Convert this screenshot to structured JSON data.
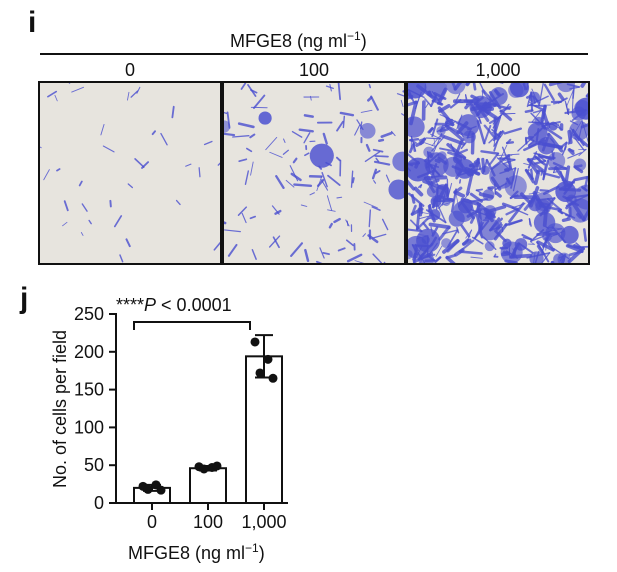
{
  "panel_i": {
    "letter": "i",
    "header_label": "MFGE8 (ng ml",
    "header_sup": "−1",
    "header_close": ")",
    "columns": [
      "0",
      "100",
      "1,000"
    ],
    "image_tint": "#4a4fd0",
    "image_background": "#e7e4de"
  },
  "panel_j": {
    "letter": "j",
    "significance": {
      "stars": "****",
      "p_letter": "P",
      "text": " < 0.0001"
    }
  },
  "chart_data": {
    "type": "bar",
    "categories": [
      "0",
      "100",
      "1,000"
    ],
    "values": [
      20,
      46,
      194
    ],
    "error": [
      4,
      3,
      28
    ],
    "points": [
      [
        22,
        24,
        18,
        17
      ],
      [
        48,
        47,
        45,
        49
      ],
      [
        213,
        190,
        172,
        165
      ]
    ],
    "xlabel": "MFGE8 (ng ml",
    "xlabel_sup": "−1",
    "xlabel_close": ")",
    "ylabel": "No. of cells per field",
    "ylim": [
      0,
      250
    ],
    "yticks": [
      0,
      50,
      100,
      150,
      200,
      250
    ],
    "grid": false,
    "bar_fill": "#ffffff",
    "bar_stroke": "#111111",
    "point_color": "#111111"
  }
}
